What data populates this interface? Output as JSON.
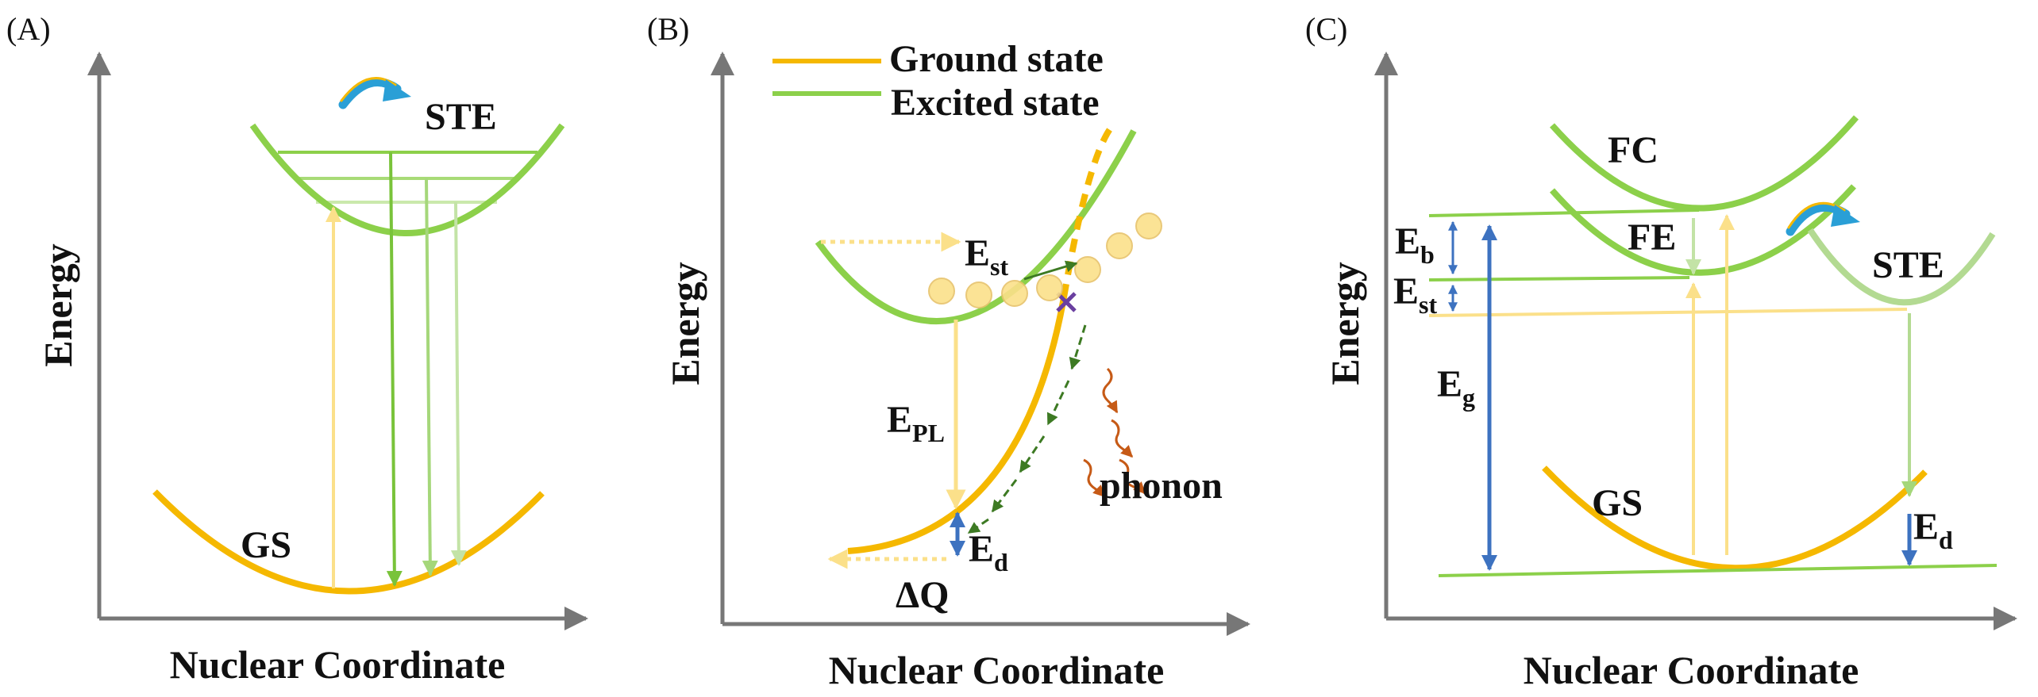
{
  "colors": {
    "ground_state": "#f5b800",
    "excited_state": "#8cd04a",
    "axis": "#777777",
    "blue_arrow": "#3d72c0",
    "pale_yellow": "#fbe08a",
    "phonon": "#c65a16",
    "crossing": "#6a3fa0",
    "dark_green_arrow": "#3d7a23"
  },
  "legend": {
    "ground": "Ground state",
    "excited": "Excited state"
  },
  "panel_a": {
    "label": "(A)",
    "y_axis": "Energy",
    "x_axis": "Nuclear Coordinate",
    "ste": "STE",
    "gs": "GS"
  },
  "panel_b": {
    "label": "(B)",
    "y_axis": "Energy",
    "x_axis": "Nuclear Coordinate",
    "est_main": "E",
    "est_sub": "st",
    "epl_main": "E",
    "epl_sub": "PL",
    "ed_main": "E",
    "ed_sub": "d",
    "dq": "ΔQ",
    "phonon": "phonon"
  },
  "panel_c": {
    "label": "(C)",
    "y_axis": "Energy",
    "x_axis": "Nuclear Coordinate",
    "fc": "FC",
    "fe": "FE",
    "ste": "STE",
    "gs": "GS",
    "eb_main": "E",
    "eb_sub": "b",
    "est_main": "E",
    "est_sub": "st",
    "eg_main": "E",
    "eg_sub": "g",
    "ed_main": "E",
    "ed_sub": "d"
  }
}
